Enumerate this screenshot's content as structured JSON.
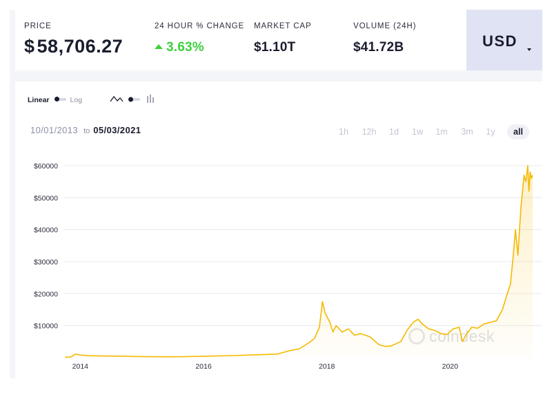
{
  "stats": {
    "price_label": "PRICE",
    "price_symbol": "$",
    "price_value": "58,706.27",
    "change_label": "24 HOUR % CHANGE",
    "change_value": "3.63%",
    "market_cap_label": "MARKET CAP",
    "market_cap_value": "$1.10T",
    "volume_label": "VOLUME (24H)",
    "volume_value": "$41.72B"
  },
  "currency": {
    "selected": "USD",
    "icon": "caret-down-icon"
  },
  "controls": {
    "scale_linear": "Linear",
    "scale_log": "Log",
    "scale_selected": "Linear",
    "chart_type_line_icon": "line-chart-icon",
    "chart_type_bar_icon": "bar-chart-icon",
    "chart_type_selected": "line"
  },
  "date_range": {
    "from": "10/01/2013",
    "to_word": "to",
    "to": "05/03/2021"
  },
  "ranges": [
    "1h",
    "12h",
    "1d",
    "1w",
    "1m",
    "3m",
    "1y",
    "all"
  ],
  "range_selected": "all",
  "watermark": {
    "text": "coindesk"
  },
  "colors": {
    "accent_line": "#f5b900",
    "change_positive": "#3ed13e",
    "currency_bg": "#dfe3f3"
  },
  "chart_data": {
    "type": "area",
    "title": "",
    "xlabel": "",
    "ylabel": "",
    "xlim": [
      2013.75,
      2021.34
    ],
    "ylim": [
      0,
      63000
    ],
    "x_tick_labels": [
      "2014",
      "2016",
      "2018",
      "2020"
    ],
    "x_ticks": [
      2014,
      2016,
      2018,
      2020
    ],
    "y_tick_labels": [
      "$10000",
      "$20000",
      "$30000",
      "$40000",
      "$50000",
      "$60000"
    ],
    "y_ticks": [
      10000,
      20000,
      30000,
      40000,
      50000,
      60000
    ],
    "grid": true,
    "series": [
      {
        "x": [
          2013.75,
          2013.85,
          2013.92,
          2014.0,
          2014.15,
          2014.4,
          2014.7,
          2015.0,
          2015.5,
          2016.0,
          2016.5,
          2016.9,
          2017.2,
          2017.4,
          2017.55,
          2017.7,
          2017.8,
          2017.88,
          2017.93,
          2017.97,
          2018.05,
          2018.1,
          2018.15,
          2018.25,
          2018.35,
          2018.45,
          2018.55,
          2018.7,
          2018.85,
          2018.95,
          2019.05,
          2019.2,
          2019.3,
          2019.4,
          2019.48,
          2019.55,
          2019.65,
          2019.75,
          2019.85,
          2019.95,
          2020.05,
          2020.15,
          2020.2,
          2020.25,
          2020.35,
          2020.45,
          2020.55,
          2020.65,
          2020.75,
          2020.85,
          2020.92,
          2020.98,
          2021.03,
          2021.06,
          2021.1,
          2021.15,
          2021.2,
          2021.23,
          2021.26,
          2021.28,
          2021.3,
          2021.32,
          2021.34
        ],
        "y": [
          130,
          200,
          1100,
          800,
          600,
          500,
          400,
          300,
          250,
          400,
          650,
          900,
          1100,
          2200,
          2700,
          4500,
          6000,
          9500,
          17500,
          14000,
          11000,
          8000,
          10000,
          8000,
          9000,
          7000,
          7500,
          6500,
          4000,
          3500,
          3700,
          5000,
          8500,
          11000,
          12000,
          10500,
          9000,
          8500,
          7500,
          7200,
          9000,
          9500,
          5000,
          6800,
          9500,
          9200,
          10500,
          11000,
          11500,
          15000,
          19500,
          23000,
          33000,
          40000,
          32000,
          47000,
          57000,
          55000,
          60000,
          52000,
          58000,
          56000,
          57000
        ]
      }
    ]
  }
}
